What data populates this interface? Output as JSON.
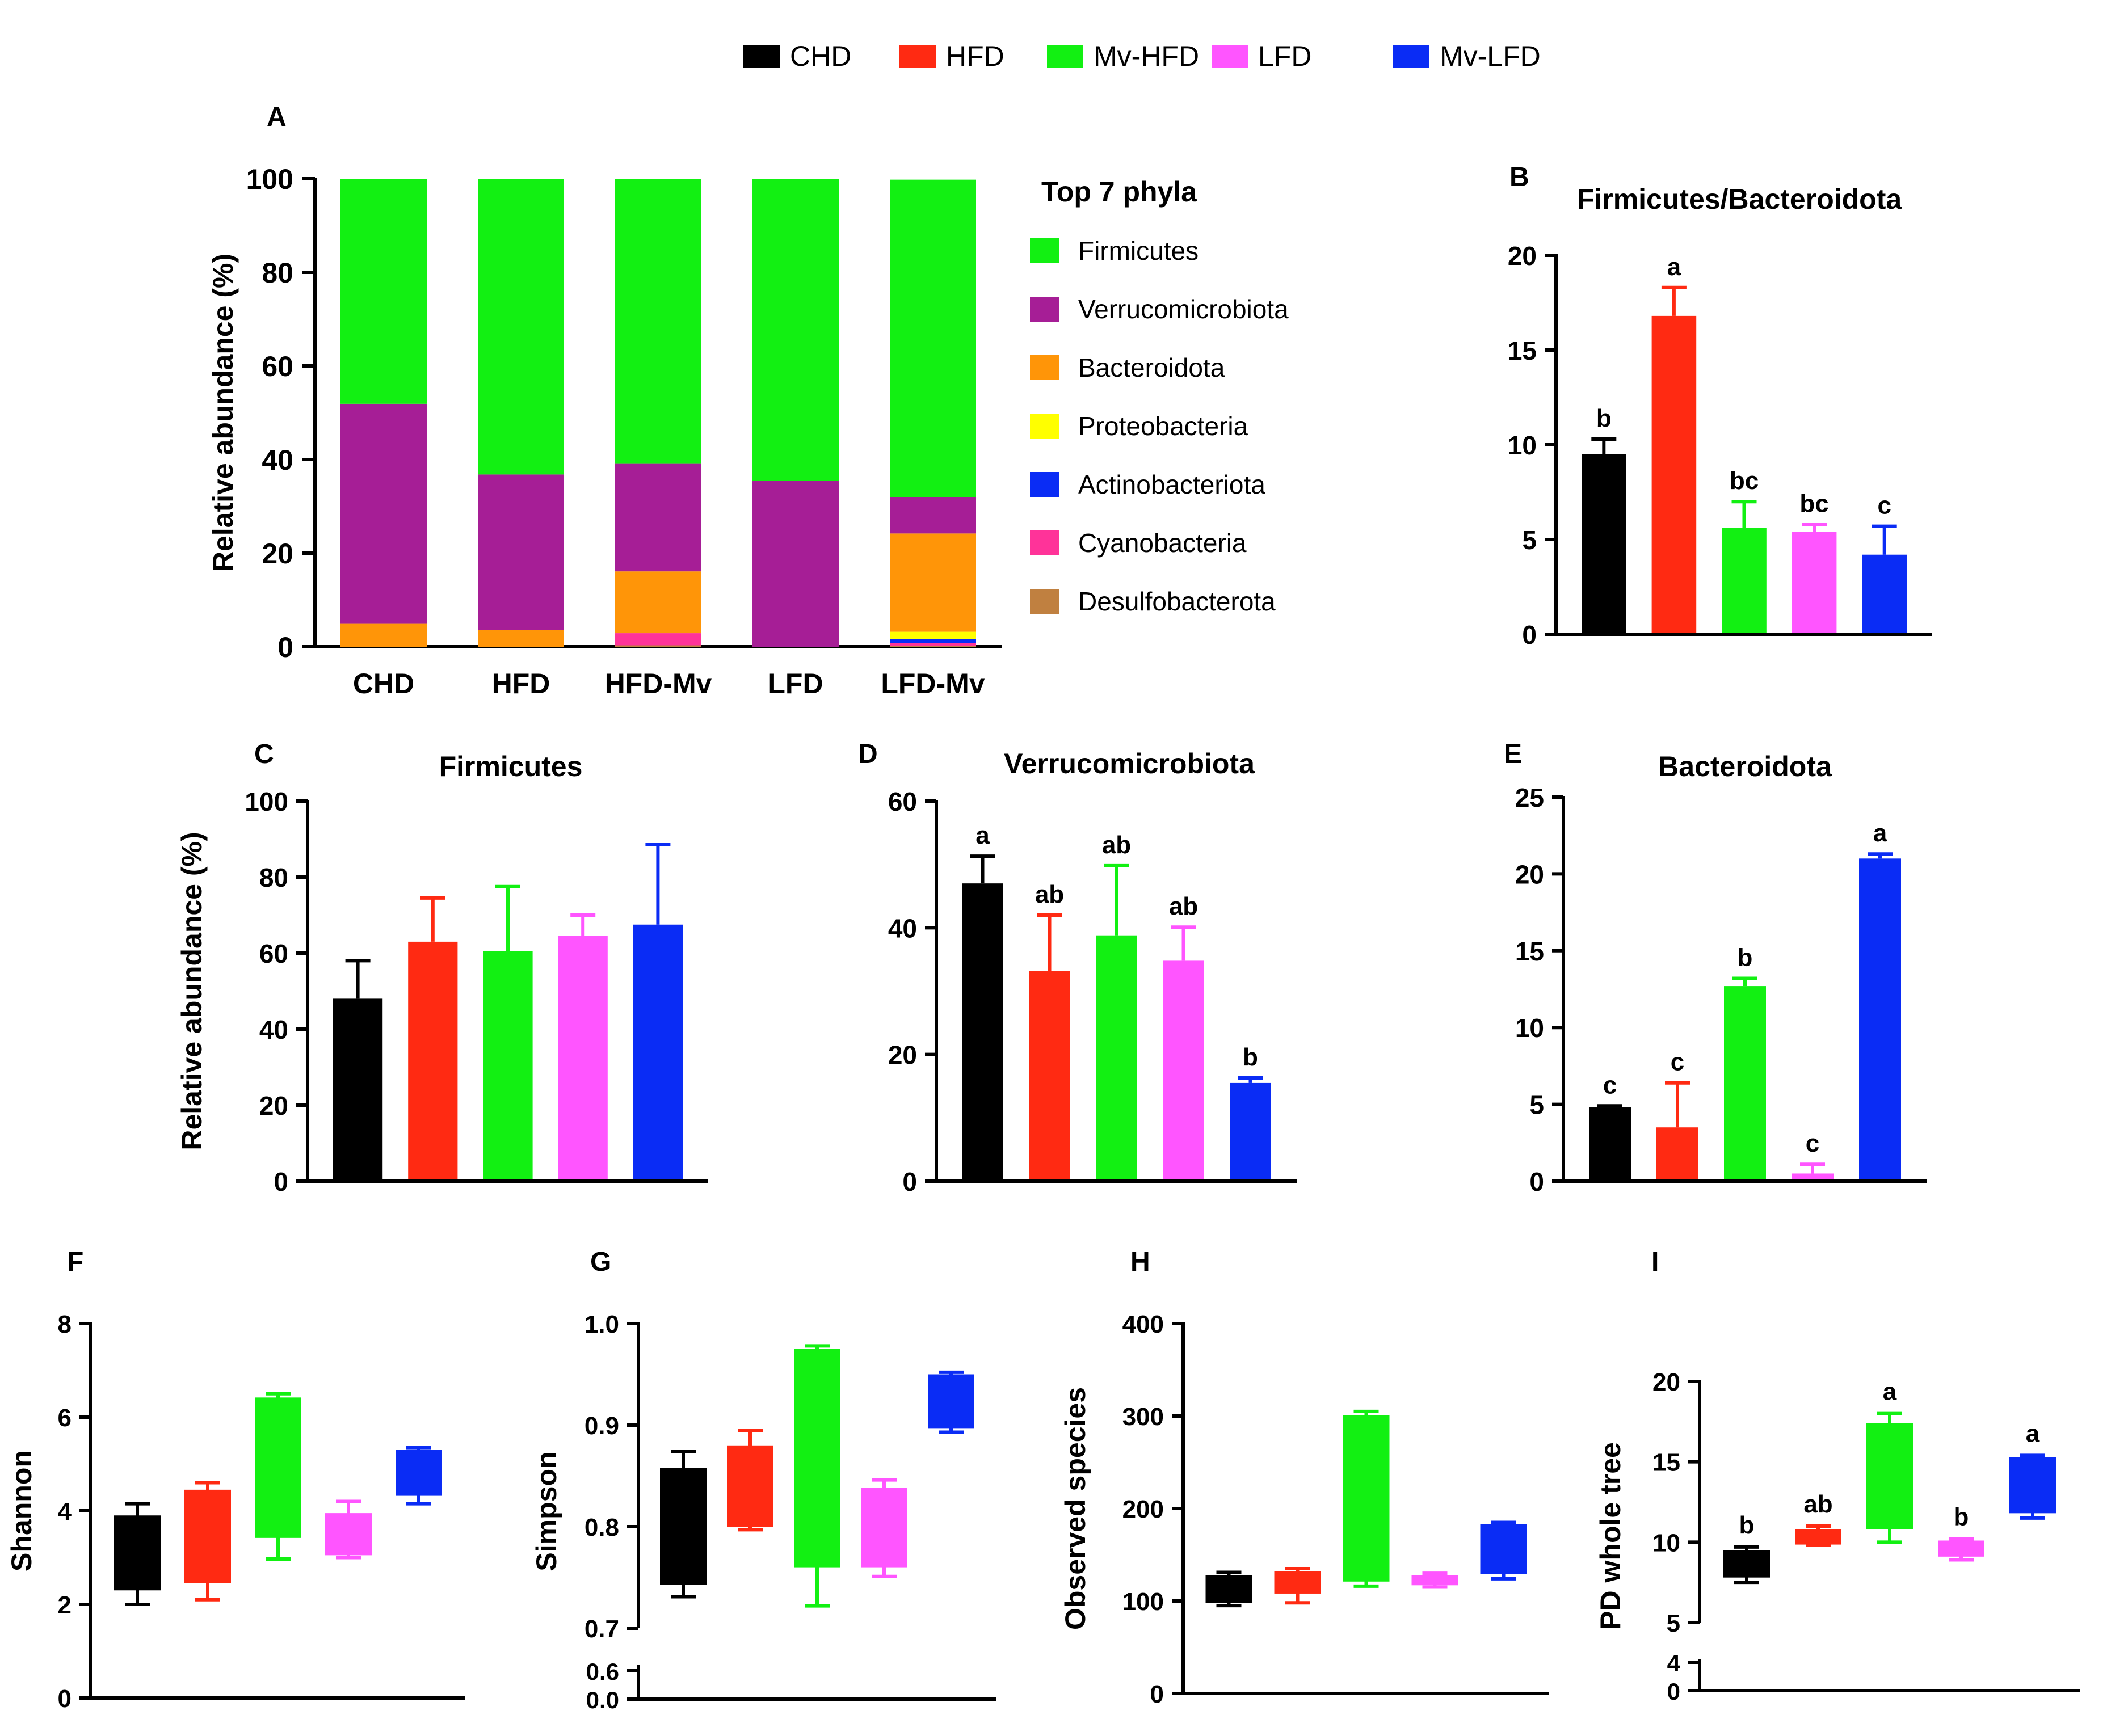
{
  "group_legend": [
    {
      "name": "CHD",
      "color": "#000000"
    },
    {
      "name": "HFD",
      "color": "#ff2a12"
    },
    {
      "name": "Mv-HFD",
      "color": "#12f012"
    },
    {
      "name": "LFD",
      "color": "#ff55ff"
    },
    {
      "name": "Mv-LFD",
      "color": "#0a2cf5"
    }
  ],
  "chart_data": [
    {
      "panel": "A",
      "type": "bar",
      "stacked": true,
      "categories": [
        "CHD",
        "HFD",
        "HFD-Mv",
        "LFD",
        "LFD-Mv"
      ],
      "ylabel": "Relative abundance (%)",
      "ylim": [
        0,
        100
      ],
      "yticks": [
        "0",
        "20",
        "40",
        "60",
        "80",
        "100"
      ],
      "legend_title": "Top 7 phyla",
      "series": [
        {
          "name": "Firmicutes",
          "color": "#12f012",
          "values": [
            48.1,
            63.2,
            60.8,
            64.6,
            67.8
          ]
        },
        {
          "name": "Verrucomicrobiota",
          "color": "#a61e96",
          "values": [
            47.0,
            33.2,
            23.1,
            35.4,
            7.8
          ]
        },
        {
          "name": "Bacteroidota",
          "color": "#ff9508",
          "values": [
            4.9,
            3.6,
            13.2,
            0,
            21.0
          ]
        },
        {
          "name": "Proteobacteria",
          "color": "#ffff00",
          "values": [
            0,
            0,
            0,
            0,
            1.5
          ]
        },
        {
          "name": "Actinobacteriota",
          "color": "#0a2cf5",
          "values": [
            0,
            0,
            0,
            0,
            0.9
          ]
        },
        {
          "name": "Cyanobacteria",
          "color": "#ff3399",
          "values": [
            0,
            0,
            2.6,
            0,
            0.6
          ]
        },
        {
          "name": "Desulfobacterota",
          "color": "#c08040",
          "values": [
            0,
            0,
            0.3,
            0,
            0.2
          ]
        }
      ]
    },
    {
      "panel": "B",
      "type": "bar",
      "title": "Firmicutes/Bacteroidota",
      "categories": [
        "CHD",
        "HFD",
        "Mv-HFD",
        "LFD",
        "Mv-LFD"
      ],
      "values": [
        9.5,
        16.8,
        5.6,
        5.4,
        4.2
      ],
      "errors": [
        0.8,
        1.5,
        1.4,
        0.4,
        1.5
      ],
      "letters": [
        "b",
        "a",
        "bc",
        "bc",
        "c"
      ],
      "ylim": [
        0,
        20
      ],
      "yticks": [
        "0",
        "5",
        "10",
        "15",
        "20"
      ]
    },
    {
      "panel": "C",
      "type": "bar",
      "title": "Firmicutes",
      "ylabel": "Relative abundance (%)",
      "categories": [
        "CHD",
        "HFD",
        "Mv-HFD",
        "LFD",
        "Mv-LFD"
      ],
      "values": [
        48,
        63,
        60.5,
        64.5,
        67.5
      ],
      "errors": [
        10,
        11.5,
        17,
        5.5,
        21
      ],
      "letters": [
        "",
        "",
        "",
        "",
        ""
      ],
      "ylim": [
        0,
        100
      ],
      "yticks": [
        "0",
        "20",
        "40",
        "60",
        "80",
        "100"
      ]
    },
    {
      "panel": "D",
      "type": "bar",
      "title": "Verrucomicrobiota",
      "categories": [
        "CHD",
        "HFD",
        "Mv-HFD",
        "LFD",
        "Mv-LFD"
      ],
      "values": [
        47,
        33.2,
        38.8,
        34.8,
        15.5
      ],
      "errors": [
        4.3,
        8.8,
        11,
        5.3,
        0.8
      ],
      "letters": [
        "a",
        "ab",
        "ab",
        "ab",
        "b"
      ],
      "ylim": [
        0,
        60
      ],
      "yticks": [
        "0",
        "20",
        "40",
        "60"
      ]
    },
    {
      "panel": "E",
      "type": "bar",
      "title": "Bacteroidota",
      "categories": [
        "CHD",
        "HFD",
        "Mv-HFD",
        "LFD",
        "Mv-LFD"
      ],
      "values": [
        4.8,
        3.5,
        12.7,
        0.5,
        21
      ],
      "errors": [
        0.1,
        2.9,
        0.5,
        0.6,
        0.3
      ],
      "letters": [
        "c",
        "c",
        "b",
        "c",
        "a"
      ],
      "ylim": [
        0,
        25
      ],
      "yticks": [
        "0",
        "5",
        "10",
        "15",
        "20",
        "25"
      ]
    },
    {
      "panel": "F",
      "type": "box",
      "ylabel": "Shannon",
      "categories": [
        "CHD",
        "HFD",
        "Mv-HFD",
        "LFD",
        "Mv-LFD"
      ],
      "boxes": [
        {
          "min": 2.0,
          "q1": 2.3,
          "q3": 3.9,
          "max": 4.15
        },
        {
          "min": 2.1,
          "q1": 2.45,
          "q3": 4.45,
          "max": 4.6
        },
        {
          "min": 2.97,
          "q1": 3.42,
          "q3": 6.42,
          "max": 6.5
        },
        {
          "min": 3.0,
          "q1": 3.05,
          "q3": 3.95,
          "max": 4.2
        },
        {
          "min": 4.15,
          "q1": 4.32,
          "q3": 5.3,
          "max": 5.35
        }
      ],
      "letters": [
        "",
        "",
        "",
        "",
        ""
      ],
      "ylim": [
        0,
        8
      ],
      "yticks": [
        "0",
        "2",
        "4",
        "6",
        "8"
      ]
    },
    {
      "panel": "G",
      "type": "box",
      "ylabel": "Simpson",
      "categories": [
        "CHD",
        "HFD",
        "Mv-HFD",
        "LFD",
        "Mv-LFD"
      ],
      "boxes": [
        {
          "min": 0.731,
          "q1": 0.743,
          "q3": 0.858,
          "max": 0.874
        },
        {
          "min": 0.797,
          "q1": 0.8,
          "q3": 0.88,
          "max": 0.895
        },
        {
          "min": 0.722,
          "q1": 0.76,
          "q3": 0.975,
          "max": 0.978
        },
        {
          "min": 0.751,
          "q1": 0.76,
          "q3": 0.838,
          "max": 0.846
        },
        {
          "min": 0.893,
          "q1": 0.897,
          "q3": 0.95,
          "max": 0.952
        }
      ],
      "letters": [
        "",
        "",
        "",
        "",
        ""
      ],
      "ylim": [
        0.7,
        1.0
      ],
      "yticks": [
        "0.7",
        "0.8",
        "0.9",
        "1.0"
      ],
      "break_ticks": [
        "0.0",
        "0.6"
      ]
    },
    {
      "panel": "H",
      "type": "box",
      "ylabel": "Observed species",
      "categories": [
        "CHD",
        "HFD",
        "Mv-HFD",
        "LFD",
        "Mv-LFD"
      ],
      "boxes": [
        {
          "min": 95,
          "q1": 98,
          "q3": 128,
          "max": 131
        },
        {
          "min": 98,
          "q1": 108,
          "q3": 132,
          "max": 135
        },
        {
          "min": 116,
          "q1": 121,
          "q3": 301,
          "max": 305
        },
        {
          "min": 115,
          "q1": 117,
          "q3": 128,
          "max": 130
        },
        {
          "min": 124,
          "q1": 129,
          "q3": 183,
          "max": 185
        }
      ],
      "letters": [
        "",
        "",
        "",
        "",
        ""
      ],
      "ylim": [
        0,
        400
      ],
      "yticks": [
        "0",
        "100",
        "200",
        "300",
        "400"
      ]
    },
    {
      "panel": "I",
      "type": "box",
      "ylabel": "PD whole tree",
      "categories": [
        "CHD",
        "HFD",
        "Mv-HFD",
        "LFD",
        "Mv-LFD"
      ],
      "boxes": [
        {
          "min": 7.5,
          "q1": 7.8,
          "q3": 9.5,
          "max": 9.7
        },
        {
          "min": 9.8,
          "q1": 9.85,
          "q3": 10.8,
          "max": 11.0
        },
        {
          "min": 10.0,
          "q1": 10.8,
          "q3": 17.4,
          "max": 18.0
        },
        {
          "min": 8.9,
          "q1": 9.1,
          "q3": 10.1,
          "max": 10.2
        },
        {
          "min": 11.5,
          "q1": 11.8,
          "q3": 15.3,
          "max": 15.4
        }
      ],
      "letters": [
        "b",
        "ab",
        "a",
        "b",
        "a"
      ],
      "ylim": [
        5,
        20
      ],
      "yticks": [
        "5",
        "10",
        "15",
        "20"
      ],
      "break_ticks": [
        "0",
        "4"
      ]
    }
  ]
}
